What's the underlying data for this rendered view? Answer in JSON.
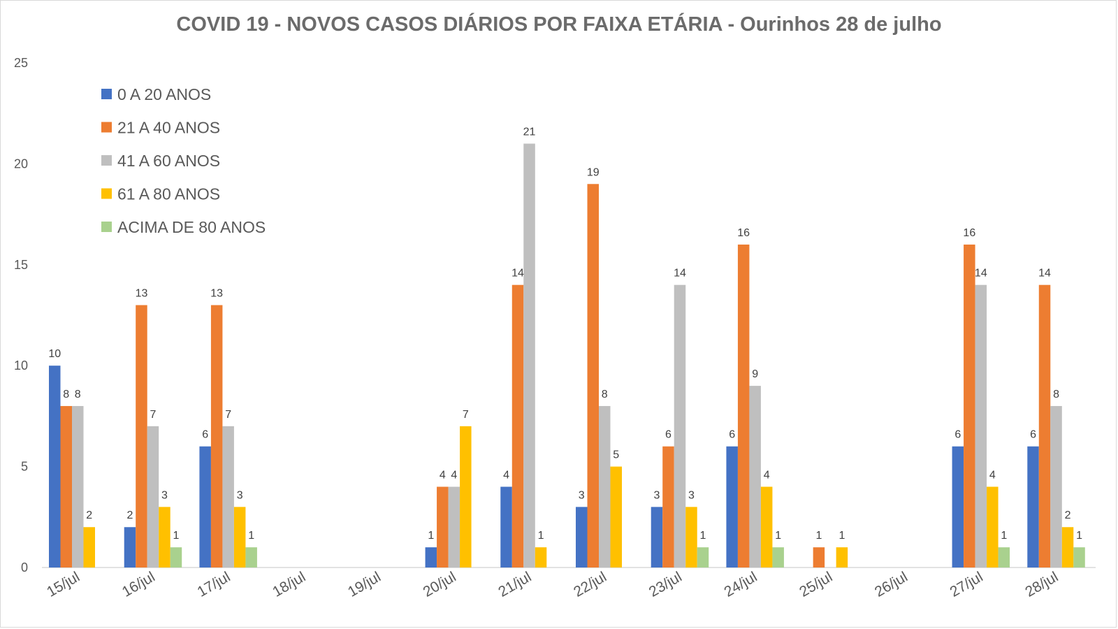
{
  "chart_data": {
    "type": "bar",
    "title": "COVID 19 - NOVOS CASOS DIÁRIOS POR FAIXA ETÁRIA - Ourinhos 28 de julho",
    "xlabel": "",
    "ylabel": "",
    "ylim": [
      0,
      25
    ],
    "yticks": [
      0,
      5,
      10,
      15,
      20,
      25
    ],
    "grid": false,
    "legend_position": "top-left",
    "categories": [
      "15/jul",
      "16/jul",
      "17/jul",
      "18/jul",
      "19/jul",
      "20/jul",
      "21/jul",
      "22/jul",
      "23/jul",
      "24/jul",
      "25/jul",
      "26/jul",
      "27/jul",
      "28/jul"
    ],
    "series": [
      {
        "name": "0 A 20 ANOS",
        "color": "#4472c4",
        "values": [
          10,
          2,
          6,
          null,
          null,
          1,
          4,
          3,
          3,
          6,
          null,
          null,
          6,
          6
        ]
      },
      {
        "name": "21 A 40 ANOS",
        "color": "#ed7d31",
        "values": [
          8,
          13,
          13,
          null,
          null,
          4,
          14,
          19,
          6,
          16,
          1,
          null,
          16,
          14
        ]
      },
      {
        "name": "41 A 60 ANOS",
        "color": "#bfbfbf",
        "values": [
          8,
          7,
          7,
          null,
          null,
          4,
          21,
          8,
          14,
          9,
          null,
          null,
          14,
          8
        ]
      },
      {
        "name": "61 A 80 ANOS",
        "color": "#ffc000",
        "values": [
          2,
          3,
          3,
          null,
          null,
          7,
          1,
          5,
          3,
          4,
          1,
          null,
          4,
          2
        ]
      },
      {
        "name": "ACIMA DE 80 ANOS",
        "color": "#a9d18e",
        "values": [
          null,
          1,
          1,
          null,
          null,
          null,
          null,
          null,
          1,
          1,
          null,
          null,
          1,
          1
        ]
      }
    ]
  }
}
